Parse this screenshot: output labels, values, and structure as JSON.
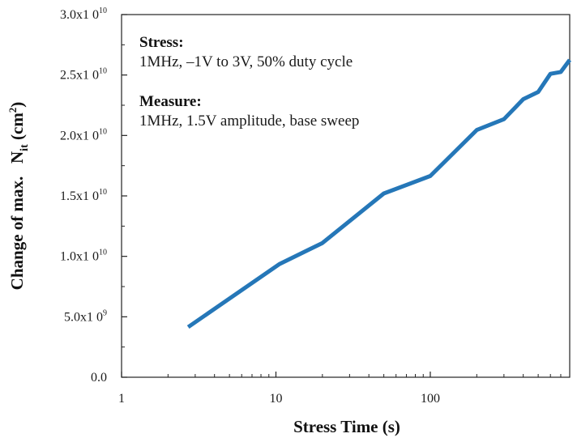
{
  "chart_data": {
    "type": "line",
    "x_scale": "log",
    "xlabel": "Stress  Time (s)",
    "ylabel_main": "Change of max.   N",
    "ylabel_sub": "it",
    "ylabel_unit": "(cm",
    "ylabel_unit_sup": "2",
    "ylabel_close": ")",
    "xlim": [
      1,
      800
    ],
    "ylim": [
      0,
      30000000000
    ],
    "x_ticks": [
      {
        "value": 1,
        "label": "1"
      },
      {
        "value": 10,
        "label": "10"
      },
      {
        "value": 100,
        "label": "100"
      }
    ],
    "y_ticks": [
      {
        "value": 0,
        "label": "0.0",
        "sup": ""
      },
      {
        "value": 5000000000,
        "label": "5.0x1 0",
        "sup": "9"
      },
      {
        "value": 10000000000,
        "label": "1.0x1 0",
        "sup": "10"
      },
      {
        "value": 15000000000,
        "label": "1.5x1 0",
        "sup": "10"
      },
      {
        "value": 20000000000,
        "label": "2.0x1 0",
        "sup": "10"
      },
      {
        "value": 25000000000,
        "label": "2.5x1 0",
        "sup": "10"
      },
      {
        "value": 30000000000,
        "label": "3.0x1 0",
        "sup": "10"
      }
    ],
    "series": [
      {
        "color": "#2577b8",
        "x": [
          2.7,
          10.5,
          20,
          50,
          100,
          200,
          300,
          400,
          500,
          600,
          700,
          800
        ],
        "y": [
          4150000000,
          9350000000,
          11100000000,
          15200000000,
          16650000000,
          20450000000,
          21350000000,
          23000000000,
          23600000000,
          25100000000,
          25250000000,
          26250000000
        ]
      }
    ],
    "grid": false,
    "legend": "none"
  },
  "annotation": {
    "stress_head": "Stress:",
    "stress_body": "1MHz, –1V to 3V, 50% duty cycle",
    "measure_head": "Measure:",
    "measure_body": "1MHz, 1.5V amplitude, base sweep"
  }
}
